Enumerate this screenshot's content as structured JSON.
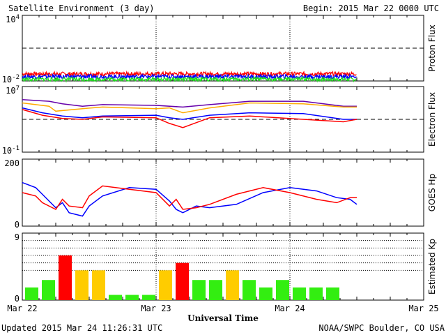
{
  "header": {
    "title": "Satellite Environment (3 day)",
    "begin": "Begin:  2015 Mar 22 0000 UTC"
  },
  "footer": {
    "updated": "Updated 2015 Mar 24 11:26:31 UTC",
    "credit": "NOAA/SWPC Boulder, CO USA",
    "xlabel": "Universal Time"
  },
  "colors": {
    "red": "#ff0000",
    "blue": "#0000ff",
    "green": "#22dd22",
    "orange": "#ffaa00",
    "purple": "#6600aa",
    "kp_green": "#33ee11",
    "kp_yellow": "#ffcc00",
    "kp_red": "#ff0000"
  },
  "chart_data": [
    {
      "type": "line",
      "panel": "proton",
      "ylabel": "Proton Flux",
      "yscale": "log",
      "y_tick_labels": [
        "10^4",
        "10^-2"
      ],
      "ylim_exp": [
        -2,
        4
      ],
      "threshold_exp": 1,
      "xlim_days": [
        0,
        3
      ],
      "series": [
        {
          "color": "red",
          "level_exp": -1.35
        },
        {
          "color": "blue",
          "level_exp": -1.6
        },
        {
          "color": "green",
          "level_exp": -1.85
        }
      ]
    },
    {
      "type": "line",
      "panel": "electron",
      "ylabel": "Electron Flux",
      "yscale": "log",
      "y_tick_labels": [
        "10^7",
        "10^-1"
      ],
      "ylim_exp": [
        -1,
        7
      ],
      "threshold_exp": 3,
      "xlim_days": [
        0,
        3
      ],
      "series": [
        {
          "color": "purple",
          "x": [
            0,
            0.2,
            0.3,
            0.45,
            0.6,
            1.0,
            1.2,
            1.4,
            1.7,
            2.1,
            2.4,
            2.5
          ],
          "y": [
            5.4,
            5.2,
            4.9,
            4.6,
            4.8,
            4.7,
            4.5,
            4.8,
            5.2,
            5.2,
            4.6,
            4.6
          ]
        },
        {
          "color": "orange",
          "x": [
            0,
            0.2,
            0.25,
            0.45,
            0.6,
            1.0,
            1.1,
            1.2,
            1.4,
            1.7,
            2.1,
            2.4,
            2.5
          ],
          "y": [
            5.0,
            4.6,
            4.0,
            4.3,
            4.5,
            4.3,
            4.4,
            3.8,
            4.4,
            5.0,
            4.9,
            4.5,
            4.5
          ]
        },
        {
          "color": "blue",
          "x": [
            0,
            0.15,
            0.3,
            0.45,
            0.6,
            1.0,
            1.1,
            1.2,
            1.4,
            1.7,
            2.1,
            2.4,
            2.5
          ],
          "y": [
            4.4,
            3.8,
            3.4,
            3.2,
            3.4,
            3.5,
            3.2,
            3.0,
            3.5,
            3.8,
            3.7,
            3.0,
            3.0
          ]
        },
        {
          "color": "red",
          "x": [
            0,
            0.15,
            0.3,
            0.45,
            0.6,
            1.0,
            1.1,
            1.2,
            1.4,
            1.7,
            2.1,
            2.4,
            2.5
          ],
          "y": [
            4.2,
            3.5,
            3.1,
            3.0,
            3.3,
            3.2,
            2.5,
            2.0,
            3.2,
            3.4,
            3.0,
            2.7,
            3.0
          ]
        }
      ]
    },
    {
      "type": "line",
      "panel": "goes_hp",
      "ylabel": "GOES Hp",
      "ylim": [
        0,
        200
      ],
      "y_tick_labels": [
        "200",
        "0"
      ],
      "xlim_days": [
        0,
        3
      ],
      "series": [
        {
          "color": "blue",
          "x": [
            0,
            0.1,
            0.15,
            0.25,
            0.3,
            0.35,
            0.45,
            0.5,
            0.6,
            0.8,
            1.0,
            1.1,
            1.15,
            1.2,
            1.3,
            1.4,
            1.6,
            1.8,
            2.0,
            2.2,
            2.35,
            2.45,
            2.5
          ],
          "y": [
            130,
            115,
            95,
            55,
            70,
            40,
            30,
            60,
            90,
            115,
            110,
            75,
            50,
            40,
            60,
            55,
            65,
            100,
            115,
            105,
            85,
            80,
            65
          ]
        },
        {
          "color": "red",
          "x": [
            0,
            0.1,
            0.15,
            0.25,
            0.3,
            0.35,
            0.45,
            0.5,
            0.6,
            0.8,
            1.0,
            1.1,
            1.15,
            1.2,
            1.3,
            1.4,
            1.6,
            1.8,
            2.0,
            2.2,
            2.35,
            2.45,
            2.5
          ],
          "y": [
            100,
            90,
            70,
            50,
            80,
            60,
            55,
            90,
            120,
            110,
            100,
            60,
            80,
            50,
            55,
            65,
            95,
            115,
            100,
            80,
            70,
            85,
            85
          ]
        }
      ]
    },
    {
      "type": "bar",
      "panel": "kp",
      "ylabel": "Estimated Kp",
      "ylim": [
        0,
        9
      ],
      "y_tick_labels": [
        "9",
        "0"
      ],
      "gridlines": [
        4,
        5,
        6,
        7,
        8
      ],
      "x_tick_labels": [
        "Mar 22",
        "Mar 23",
        "Mar 24",
        "Mar 25"
      ],
      "values": [
        1.7,
        2.7,
        6,
        4,
        4,
        0.7,
        0.7,
        0.7,
        4,
        5,
        2.7,
        2.7,
        4,
        2.7,
        1.7,
        2.7,
        1.7,
        1.7,
        1.7
      ],
      "colors": [
        "green",
        "green",
        "red",
        "yellow",
        "yellow",
        "green",
        "green",
        "green",
        "yellow",
        "red",
        "green",
        "green",
        "yellow",
        "green",
        "green",
        "green",
        "green",
        "green",
        "green"
      ]
    }
  ]
}
